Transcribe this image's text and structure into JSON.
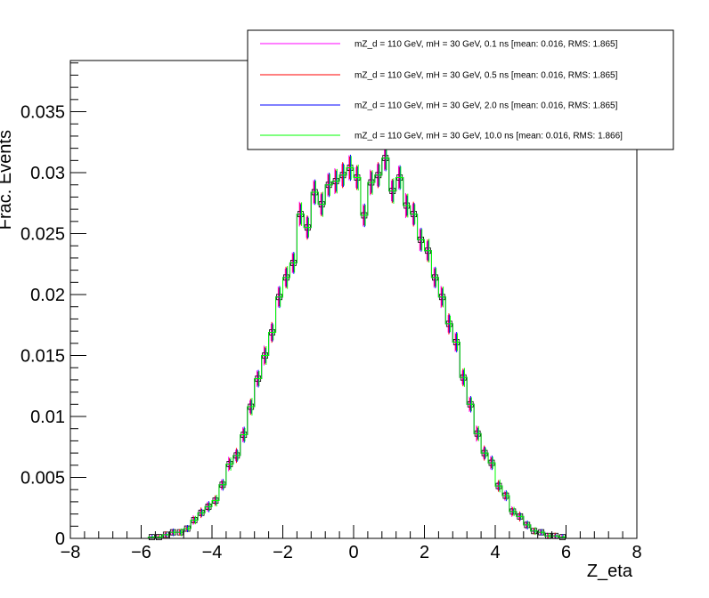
{
  "chart_data": {
    "type": "line",
    "title": "",
    "xlabel": "Z_eta",
    "ylabel": "Frac. Events",
    "xlim": [
      -8,
      8
    ],
    "ylim": [
      0,
      0.0392
    ],
    "x_ticks": [
      -8,
      -6,
      -4,
      -2,
      0,
      2,
      4,
      6,
      8
    ],
    "x_tick_labels": [
      "−8",
      "−6",
      "−4",
      "−2",
      "0",
      "2",
      "4",
      "6",
      "8"
    ],
    "y_ticks": [
      0,
      0.005,
      0.01,
      0.015,
      0.02,
      0.025,
      0.03,
      0.035
    ],
    "y_tick_labels": [
      "0",
      "0.005",
      "0.01",
      "0.015",
      "0.02",
      "0.025",
      "0.03",
      "0.035"
    ],
    "legend_position": "top-right",
    "bin_width": 0.2,
    "bin_centers": [
      -7.9,
      -7.7,
      -7.5,
      -7.3,
      -7.1,
      -6.9,
      -6.7,
      -6.5,
      -6.3,
      -6.1,
      -5.9,
      -5.7,
      -5.5,
      -5.3,
      -5.1,
      -4.9,
      -4.7,
      -4.5,
      -4.3,
      -4.1,
      -3.9,
      -3.7,
      -3.5,
      -3.3,
      -3.1,
      -2.9,
      -2.7,
      -2.5,
      -2.3,
      -2.1,
      -1.9,
      -1.7,
      -1.5,
      -1.3,
      -1.1,
      -0.9,
      -0.7,
      -0.5,
      -0.3,
      -0.1,
      0.1,
      0.3,
      0.5,
      0.7,
      0.9,
      1.1,
      1.3,
      1.5,
      1.7,
      1.9,
      2.1,
      2.3,
      2.5,
      2.7,
      2.9,
      3.1,
      3.3,
      3.5,
      3.7,
      3.9,
      4.1,
      4.3,
      4.5,
      4.7,
      4.9,
      5.1,
      5.3,
      5.5,
      5.7,
      5.9,
      6.1,
      6.3,
      6.5,
      6.7,
      6.9,
      7.1,
      7.3,
      7.5,
      7.7,
      7.9
    ],
    "series": [
      {
        "name": "mZ_d = 110 GeV, mH = 30 GeV, 0.1 ns [mean: 0.016, RMS: 1.865]",
        "color": "#ff00ff",
        "values": [
          0,
          0,
          0,
          0,
          0,
          0,
          0,
          0,
          0,
          0,
          0,
          0.0001,
          0.0001,
          0.0003,
          0.0005,
          0.0005,
          0.0008,
          0.0015,
          0.0021,
          0.0026,
          0.0031,
          0.0044,
          0.0061,
          0.0068,
          0.0085,
          0.0108,
          0.0131,
          0.015,
          0.0169,
          0.0198,
          0.0214,
          0.0226,
          0.0266,
          0.0255,
          0.0284,
          0.0274,
          0.029,
          0.0293,
          0.0298,
          0.0304,
          0.0296,
          0.0265,
          0.0292,
          0.0298,
          0.0312,
          0.0285,
          0.0296,
          0.0273,
          0.0266,
          0.0245,
          0.0236,
          0.0214,
          0.0198,
          0.0176,
          0.0161,
          0.0132,
          0.011,
          0.0086,
          0.007,
          0.0062,
          0.0043,
          0.0035,
          0.0022,
          0.0018,
          0.0011,
          0.0006,
          0.0005,
          0.0002,
          0.0002,
          0.0001,
          0,
          0,
          0,
          0,
          0,
          0,
          0,
          0,
          0,
          0
        ]
      },
      {
        "name": "mZ_d = 110 GeV, mH = 30 GeV, 0.5 ns [mean: 0.016, RMS: 1.865]",
        "color": "#ff0000",
        "values": [
          0,
          0,
          0,
          0,
          0,
          0,
          0,
          0,
          0,
          0,
          0,
          0.0001,
          0.0001,
          0.0003,
          0.0005,
          0.0005,
          0.0008,
          0.0015,
          0.0021,
          0.0026,
          0.0031,
          0.0044,
          0.0061,
          0.0068,
          0.0085,
          0.0108,
          0.0131,
          0.015,
          0.0169,
          0.0198,
          0.0214,
          0.0226,
          0.0266,
          0.0255,
          0.0284,
          0.0274,
          0.029,
          0.0293,
          0.0298,
          0.0304,
          0.0296,
          0.0265,
          0.0292,
          0.0298,
          0.0312,
          0.0285,
          0.0296,
          0.0273,
          0.0266,
          0.0245,
          0.0236,
          0.0214,
          0.0198,
          0.0176,
          0.0161,
          0.0132,
          0.011,
          0.0086,
          0.007,
          0.0062,
          0.0043,
          0.0035,
          0.0022,
          0.0018,
          0.0011,
          0.0006,
          0.0005,
          0.0002,
          0.0002,
          0.0001,
          0,
          0,
          0,
          0,
          0,
          0,
          0,
          0,
          0,
          0
        ]
      },
      {
        "name": "mZ_d = 110 GeV, mH = 30 GeV, 2.0 ns [mean: 0.016, RMS: 1.865]",
        "color": "#0000ff",
        "values": [
          0,
          0,
          0,
          0,
          0,
          0,
          0,
          0,
          0,
          0,
          0,
          0.0001,
          0.0001,
          0.0003,
          0.0005,
          0.0005,
          0.0008,
          0.0015,
          0.0021,
          0.0026,
          0.0031,
          0.0044,
          0.0061,
          0.0068,
          0.0085,
          0.0108,
          0.0131,
          0.015,
          0.0169,
          0.0198,
          0.0214,
          0.0226,
          0.0266,
          0.0255,
          0.0284,
          0.0274,
          0.029,
          0.0293,
          0.0298,
          0.0304,
          0.0296,
          0.0265,
          0.0292,
          0.0298,
          0.0312,
          0.0285,
          0.0296,
          0.0273,
          0.0266,
          0.0245,
          0.0236,
          0.0214,
          0.0198,
          0.0176,
          0.0161,
          0.0132,
          0.011,
          0.0086,
          0.007,
          0.0062,
          0.0043,
          0.0035,
          0.0022,
          0.0018,
          0.0011,
          0.0006,
          0.0005,
          0.0002,
          0.0002,
          0.0001,
          0,
          0,
          0,
          0,
          0,
          0,
          0,
          0,
          0,
          0
        ]
      },
      {
        "name": "mZ_d = 110 GeV, mH = 30 GeV, 10.0 ns [mean: 0.016, RMS: 1.866]",
        "color": "#00ff00",
        "values": [
          0,
          0,
          0,
          0,
          0,
          0,
          0,
          0,
          0,
          0,
          0,
          0.0001,
          0.0001,
          0.0003,
          0.0005,
          0.0005,
          0.0008,
          0.0015,
          0.0021,
          0.0026,
          0.0031,
          0.0044,
          0.0061,
          0.0068,
          0.0085,
          0.0108,
          0.0131,
          0.015,
          0.0169,
          0.0198,
          0.0214,
          0.0226,
          0.0266,
          0.0255,
          0.0284,
          0.0274,
          0.029,
          0.0293,
          0.0298,
          0.0304,
          0.0296,
          0.0265,
          0.0292,
          0.0298,
          0.0312,
          0.0285,
          0.0296,
          0.0273,
          0.0266,
          0.0245,
          0.0236,
          0.0214,
          0.0198,
          0.0176,
          0.0161,
          0.0132,
          0.011,
          0.0086,
          0.007,
          0.0062,
          0.0043,
          0.0035,
          0.0022,
          0.0018,
          0.0011,
          0.0006,
          0.0005,
          0.0002,
          0.0002,
          0.0001,
          0,
          0,
          0,
          0,
          0,
          0,
          0,
          0,
          0,
          0
        ]
      }
    ]
  }
}
